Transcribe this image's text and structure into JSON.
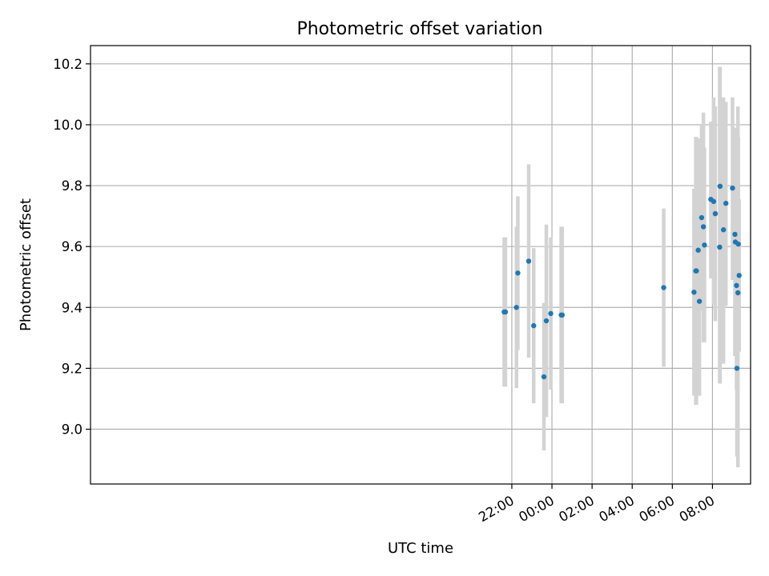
{
  "chart_data": {
    "type": "scatter",
    "title": "Photometric offset variation",
    "xlabel": "UTC time",
    "ylabel": "Photometric offset",
    "x_unit": "hours (UTC, relative to 00:00; negative values fall on the previous evening)",
    "xlim": [
      -23.0,
      9.9
    ],
    "ylim": [
      8.82,
      10.26
    ],
    "x_ticks": [
      {
        "value": -2,
        "label": "22:00"
      },
      {
        "value": 0,
        "label": "00:00"
      },
      {
        "value": 2,
        "label": "02:00"
      },
      {
        "value": 4,
        "label": "04:00"
      },
      {
        "value": 6,
        "label": "06:00"
      },
      {
        "value": 8,
        "label": "08:00"
      }
    ],
    "y_ticks": [
      {
        "value": 9.0,
        "label": "9.0"
      },
      {
        "value": 9.2,
        "label": "9.2"
      },
      {
        "value": 9.4,
        "label": "9.4"
      },
      {
        "value": 9.6,
        "label": "9.6"
      },
      {
        "value": 9.8,
        "label": "9.8"
      },
      {
        "value": 10.0,
        "label": "10.0"
      },
      {
        "value": 10.2,
        "label": "10.2"
      }
    ],
    "grid": true,
    "marker_color": "#1f77b4",
    "errorbar_color": "#d3d3d3",
    "points": [
      {
        "x": -2.38,
        "y": 9.385,
        "lo": 9.14,
        "hi": 9.63
      },
      {
        "x": -2.32,
        "y": 9.385,
        "lo": 9.14,
        "hi": 9.63
      },
      {
        "x": -1.77,
        "y": 9.4,
        "lo": 9.135,
        "hi": 9.665
      },
      {
        "x": -1.7,
        "y": 9.513,
        "lo": 9.26,
        "hi": 9.765
      },
      {
        "x": -1.16,
        "y": 9.552,
        "lo": 9.235,
        "hi": 9.87
      },
      {
        "x": -0.91,
        "y": 9.34,
        "lo": 9.085,
        "hi": 9.595
      },
      {
        "x": -0.4,
        "y": 9.172,
        "lo": 8.93,
        "hi": 9.415
      },
      {
        "x": -0.28,
        "y": 9.356,
        "lo": 9.04,
        "hi": 9.672
      },
      {
        "x": -0.06,
        "y": 9.38,
        "lo": 9.13,
        "hi": 9.63
      },
      {
        "x": 0.46,
        "y": 9.375,
        "lo": 9.085,
        "hi": 9.665
      },
      {
        "x": 0.51,
        "y": 9.375,
        "lo": 9.085,
        "hi": 9.665
      },
      {
        "x": 5.57,
        "y": 9.465,
        "lo": 9.205,
        "hi": 9.725
      },
      {
        "x": 7.08,
        "y": 9.45,
        "lo": 9.11,
        "hi": 9.79
      },
      {
        "x": 7.17,
        "y": 9.52,
        "lo": 9.08,
        "hi": 9.96
      },
      {
        "x": 7.2,
        "y": 9.52,
        "lo": 9.08,
        "hi": 9.96
      },
      {
        "x": 7.29,
        "y": 9.588,
        "lo": 9.22,
        "hi": 9.955
      },
      {
        "x": 7.35,
        "y": 9.42,
        "lo": 9.11,
        "hi": 9.73
      },
      {
        "x": 7.46,
        "y": 9.695,
        "lo": 9.39,
        "hi": 10.0
      },
      {
        "x": 7.55,
        "y": 9.665,
        "lo": 9.285,
        "hi": 10.04
      },
      {
        "x": 7.6,
        "y": 9.605,
        "lo": 9.285,
        "hi": 9.925
      },
      {
        "x": 7.92,
        "y": 9.755,
        "lo": 9.495,
        "hi": 10.01
      },
      {
        "x": 8.06,
        "y": 9.748,
        "lo": 9.41,
        "hi": 10.09
      },
      {
        "x": 8.14,
        "y": 9.708,
        "lo": 9.355,
        "hi": 10.06
      },
      {
        "x": 8.36,
        "y": 9.598,
        "lo": 9.15,
        "hi": 10.19
      },
      {
        "x": 8.38,
        "y": 9.798,
        "lo": 9.15,
        "hi": 10.19
      },
      {
        "x": 8.55,
        "y": 9.655,
        "lo": 9.215,
        "hi": 10.09
      },
      {
        "x": 8.67,
        "y": 9.742,
        "lo": 9.405,
        "hi": 10.075
      },
      {
        "x": 9.0,
        "y": 9.792,
        "lo": 9.49,
        "hi": 10.09
      },
      {
        "x": 9.12,
        "y": 9.64,
        "lo": 9.24,
        "hi": 9.99
      },
      {
        "x": 9.14,
        "y": 9.615,
        "lo": 9.24,
        "hi": 9.99
      },
      {
        "x": 9.2,
        "y": 9.472,
        "lo": 9.13,
        "hi": 9.81
      },
      {
        "x": 9.22,
        "y": 9.2,
        "lo": 8.91,
        "hi": 9.49
      },
      {
        "x": 9.27,
        "y": 9.448,
        "lo": 8.875,
        "hi": 10.06
      },
      {
        "x": 9.29,
        "y": 9.608,
        "lo": 9.255,
        "hi": 9.96
      },
      {
        "x": 9.33,
        "y": 9.505,
        "lo": 9.255,
        "hi": 9.755
      }
    ]
  }
}
